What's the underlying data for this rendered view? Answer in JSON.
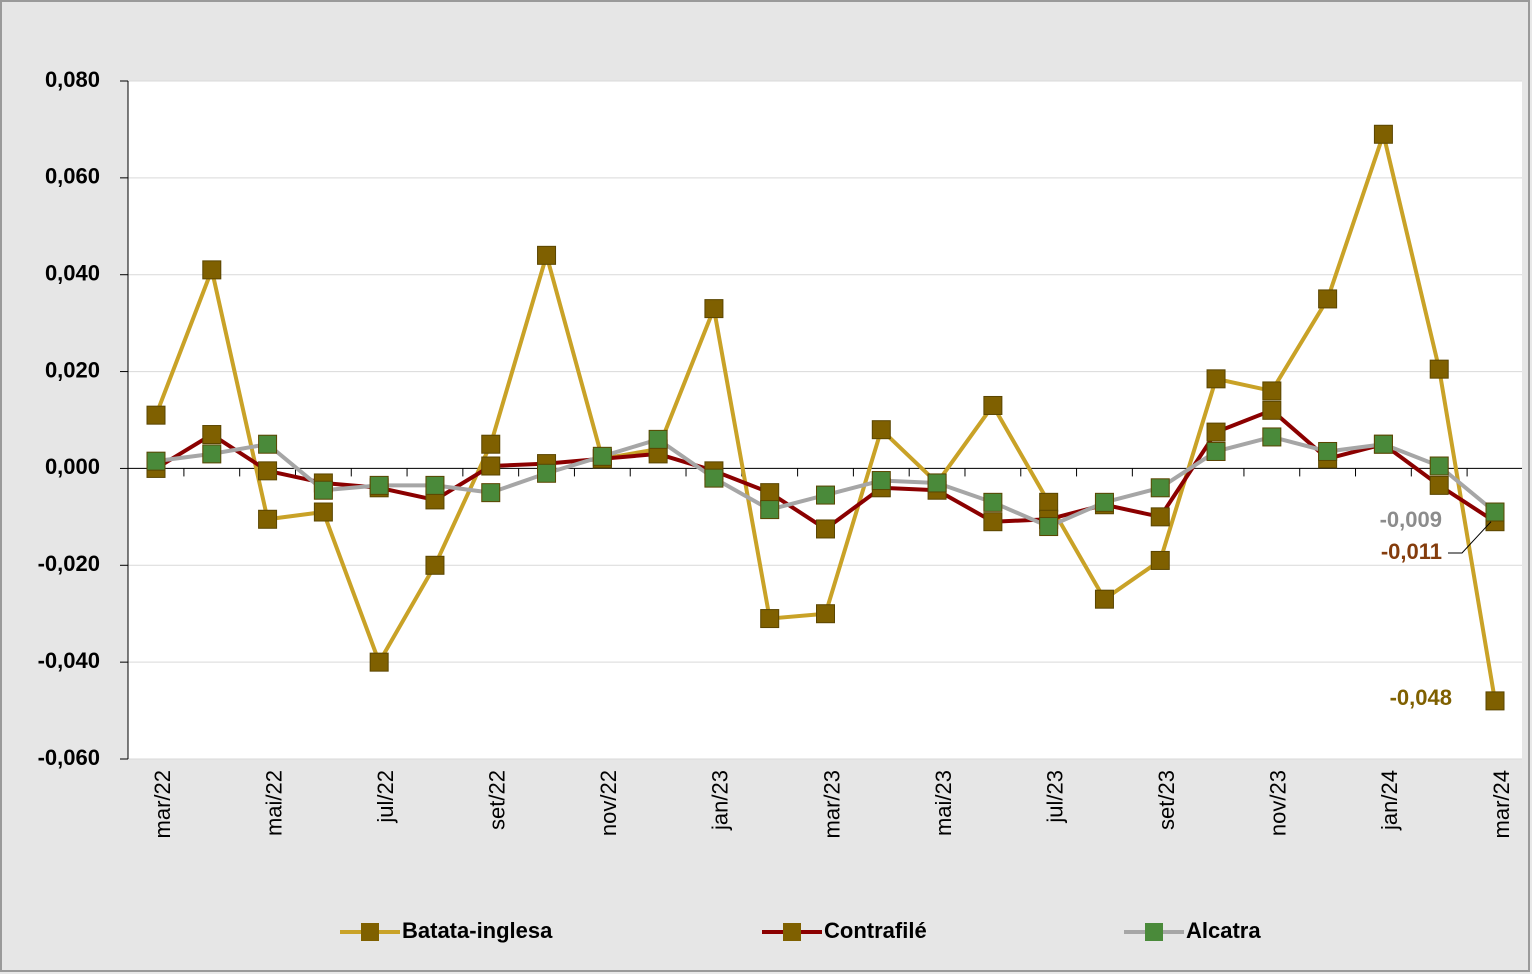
{
  "chart_data": {
    "type": "line",
    "categories": [
      "mar/22",
      null,
      "mai/22",
      null,
      "jul/22",
      null,
      "set/22",
      null,
      "nov/22",
      null,
      "jan/23",
      null,
      "mar/23",
      null,
      "mai/23",
      null,
      "jul/23",
      null,
      "set/23",
      null,
      "nov/23",
      null,
      "jan/24",
      null,
      "mar/24"
    ],
    "ylim": [
      -0.06,
      0.08
    ],
    "yticks": [
      {
        "value": -0.06,
        "label": "-0,060"
      },
      {
        "value": -0.04,
        "label": "-0,040"
      },
      {
        "value": -0.02,
        "label": "-0,020"
      },
      {
        "value": 0,
        "label": "0,000"
      },
      {
        "value": 0.02,
        "label": "0,020"
      },
      {
        "value": 0.04,
        "label": "0,040"
      },
      {
        "value": 0.06,
        "label": "0,060"
      },
      {
        "value": 0.08,
        "label": "0,080"
      }
    ],
    "grid": true,
    "legend": "bottom",
    "series": [
      {
        "name": "Batata-inglesa",
        "color": "#c9a227",
        "marker_color": "#7f6000",
        "label_color": "#7f6000",
        "values": [
          0.011,
          0.041,
          -0.0105,
          -0.009,
          -0.04,
          -0.02,
          0.005,
          0.044,
          0.002,
          0.004,
          0.033,
          -0.031,
          -0.03,
          0.008,
          -0.003,
          0.013,
          -0.007,
          -0.027,
          -0.019,
          0.0185,
          0.016,
          0.035,
          0.069,
          0.0205,
          -0.048
        ],
        "value_labels": [
          null,
          null,
          null,
          null,
          null,
          null,
          null,
          null,
          null,
          null,
          null,
          null,
          null,
          null,
          null,
          null,
          null,
          null,
          null,
          null,
          null,
          null,
          null,
          null,
          "-0,048"
        ]
      },
      {
        "name": "Contrafilé",
        "color": "#8b0000",
        "marker_color": "#7f6000",
        "label_color": "#843c0c",
        "values": [
          0.0,
          0.007,
          -0.0005,
          -0.003,
          -0.004,
          -0.0065,
          0.0005,
          0.001,
          0.002,
          0.003,
          -0.0005,
          -0.005,
          -0.0125,
          -0.004,
          -0.0045,
          -0.011,
          -0.0105,
          -0.0075,
          -0.01,
          0.0075,
          0.012,
          0.002,
          0.005,
          -0.0035,
          -0.011
        ],
        "value_labels": [
          null,
          null,
          null,
          null,
          null,
          null,
          null,
          null,
          null,
          null,
          null,
          null,
          null,
          null,
          null,
          null,
          null,
          null,
          null,
          null,
          null,
          null,
          null,
          null,
          "-0,011"
        ]
      },
      {
        "name": "Alcatra",
        "color": "#a6a6a6",
        "marker_color": "#4a8a3a",
        "label_color": "#8c8c8c",
        "values": [
          0.0015,
          0.003,
          0.005,
          -0.0045,
          -0.0035,
          -0.0035,
          -0.005,
          -0.001,
          0.0025,
          0.006,
          -0.002,
          -0.0085,
          -0.0055,
          -0.0025,
          -0.003,
          -0.007,
          -0.012,
          -0.007,
          -0.004,
          0.0035,
          0.0065,
          0.0035,
          0.005,
          0.0005,
          -0.009
        ],
        "value_labels": [
          null,
          null,
          null,
          null,
          null,
          null,
          null,
          null,
          null,
          null,
          null,
          null,
          null,
          null,
          null,
          null,
          null,
          null,
          null,
          null,
          null,
          null,
          null,
          null,
          "-0,009"
        ]
      }
    ]
  }
}
